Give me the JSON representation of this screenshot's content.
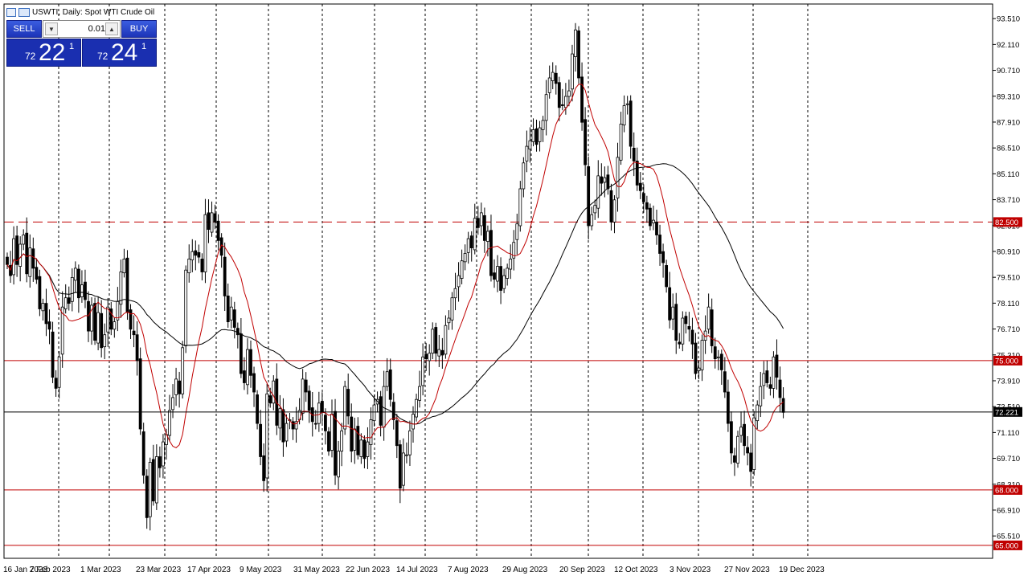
{
  "header": {
    "title": "USWTI, Daily:  Spot WTI Crude Oil"
  },
  "trade_panel": {
    "sell_label": "SELL",
    "buy_label": "BUY",
    "lot_value": "0.01",
    "lot_down_icon": "triangle-down-icon",
    "lot_up_icon": "triangle-up-icon",
    "sell_price_small": "72",
    "sell_price_big": "22",
    "sell_price_sup": "1",
    "buy_price_small": "72",
    "buy_price_big": "24",
    "buy_price_sup": "1"
  },
  "colors": {
    "bull": "#ffffff",
    "bear": "#000000",
    "ma_fast": "#c00000",
    "ma_slow": "#000000",
    "level_line": "#c00000",
    "panel_blue": "#1a2fb0"
  },
  "chart_data": {
    "type": "candlestick",
    "title": "USWTI, Daily:  Spot WTI Crude Oil",
    "x_tick_labels": [
      "16 Jan 2023",
      "7 Feb 2023",
      "1 Mar 2023",
      "23 Mar 2023",
      "17 Apr 2023",
      "9 May 2023",
      "31 May 2023",
      "22 Jun 2023",
      "14 Jul 2023",
      "7 Aug 2023",
      "29 Aug 2023",
      "20 Sep 2023",
      "12 Oct 2023",
      "3 Nov 2023",
      "27 Nov 2023",
      "19 Dec 2023"
    ],
    "y_ticks": [
      "93.510",
      "92.110",
      "90.710",
      "89.310",
      "87.910",
      "86.510",
      "85.110",
      "83.710",
      "82.310",
      "80.910",
      "79.510",
      "78.110",
      "76.710",
      "75.310",
      "73.910",
      "72.510",
      "71.110",
      "69.710",
      "68.310",
      "66.910",
      "65.510"
    ],
    "ylim": [
      64.3,
      94.3
    ],
    "current_price": "72.221",
    "current_price_value": 72.221,
    "horizontal_levels": [
      {
        "label": "82.500",
        "value": 82.5,
        "style": "dashed"
      },
      {
        "label": "75.000",
        "value": 75.0,
        "style": "solid"
      },
      {
        "label": "68.000",
        "value": 68.0,
        "style": "solid"
      },
      {
        "label": "65.000",
        "value": 65.0,
        "style": "solid"
      }
    ],
    "closes": [
      80.2,
      79.6,
      81.6,
      80.2,
      81.3,
      81.8,
      79.7,
      81.1,
      80.0,
      79.4,
      77.8,
      78.1,
      77.0,
      76.7,
      74.1,
      73.5,
      75.2,
      77.9,
      78.4,
      78.1,
      79.5,
      80.0,
      78.4,
      79.1,
      78.3,
      76.6,
      78.0,
      76.1,
      77.6,
      75.7,
      76.4,
      77.9,
      76.7,
      77.1,
      78.2,
      79.8,
      80.5,
      77.6,
      76.7,
      76.4,
      75.0,
      71.3,
      68.8,
      66.5,
      69.5,
      67.4,
      69.8,
      69.2,
      70.6,
      71.0,
      72.3,
      73.0,
      74.0,
      73.2,
      75.7,
      79.9,
      80.5,
      80.9,
      80.7,
      80.6,
      79.8,
      82.9,
      82.1,
      83.0,
      82.5,
      81.5,
      80.7,
      78.5,
      77.1,
      77.9,
      76.8,
      76.4,
      74.3,
      73.8,
      75.6,
      74.2,
      73.3,
      71.6,
      69.8,
      68.5,
      73.2,
      72.7,
      73.9,
      71.5,
      72.4,
      70.6,
      71.6,
      71.8,
      71.3,
      71.7,
      72.3,
      74.0,
      73.3,
      72.3,
      71.7,
      71.6,
      72.7,
      72.2,
      71.2,
      70.1,
      72.1,
      68.8,
      70.1,
      71.2,
      73.6,
      72.0,
      70.1,
      71.3,
      69.9,
      70.7,
      69.7,
      70.6,
      71.8,
      72.6,
      72.9,
      71.5,
      73.6,
      74.4,
      72.9,
      71.8,
      70.4,
      68.1,
      70.0,
      69.9,
      71.2,
      72.1,
      72.9,
      73.6,
      75.2,
      75.1,
      75.4,
      76.7,
      75.4,
      75.6,
      75.3,
      76.9,
      77.3,
      78.4,
      78.9,
      79.6,
      80.4,
      80.8,
      81.6,
      81.1,
      82.7,
      82.2,
      83.0,
      81.5,
      82.0,
      79.6,
      79.4,
      80.1,
      78.8,
      79.6,
      80.0,
      80.5,
      81.4,
      82.4,
      84.3,
      85.7,
      86.6,
      86.9,
      87.5,
      86.7,
      87.6,
      88.0,
      89.4,
      90.3,
      90.6,
      90.0,
      88.7,
      88.8,
      89.3,
      89.6,
      91.6,
      92.9,
      90.3,
      87.9,
      85.6,
      82.3,
      82.9,
      83.4,
      85.0,
      84.6,
      84.9,
      84.3,
      82.5,
      83.7,
      86.0,
      87.8,
      88.8,
      88.9,
      86.6,
      85.8,
      84.5,
      84.2,
      83.6,
      83.2,
      82.3,
      82.6,
      81.8,
      80.8,
      80.3,
      79.0,
      77.2,
      77.9,
      76.1,
      75.9,
      77.3,
      77.0,
      76.7,
      75.9,
      74.3,
      74.6,
      76.1,
      76.6,
      77.9,
      75.8,
      75.1,
      75.2,
      74.5,
      73.3,
      71.6,
      70.0,
      69.5,
      70.9,
      71.4,
      70.4,
      70.0,
      69.0,
      71.9,
      72.6,
      73.6,
      74.3,
      73.8,
      73.5,
      75.2,
      74.1,
      73.0,
      72.2
    ],
    "ma_fast": {
      "name": "",
      "period": 50
    },
    "ma_slow": {
      "name": "",
      "period": 200
    },
    "grid": "vertical dashed at date ticks",
    "legend": "none"
  }
}
